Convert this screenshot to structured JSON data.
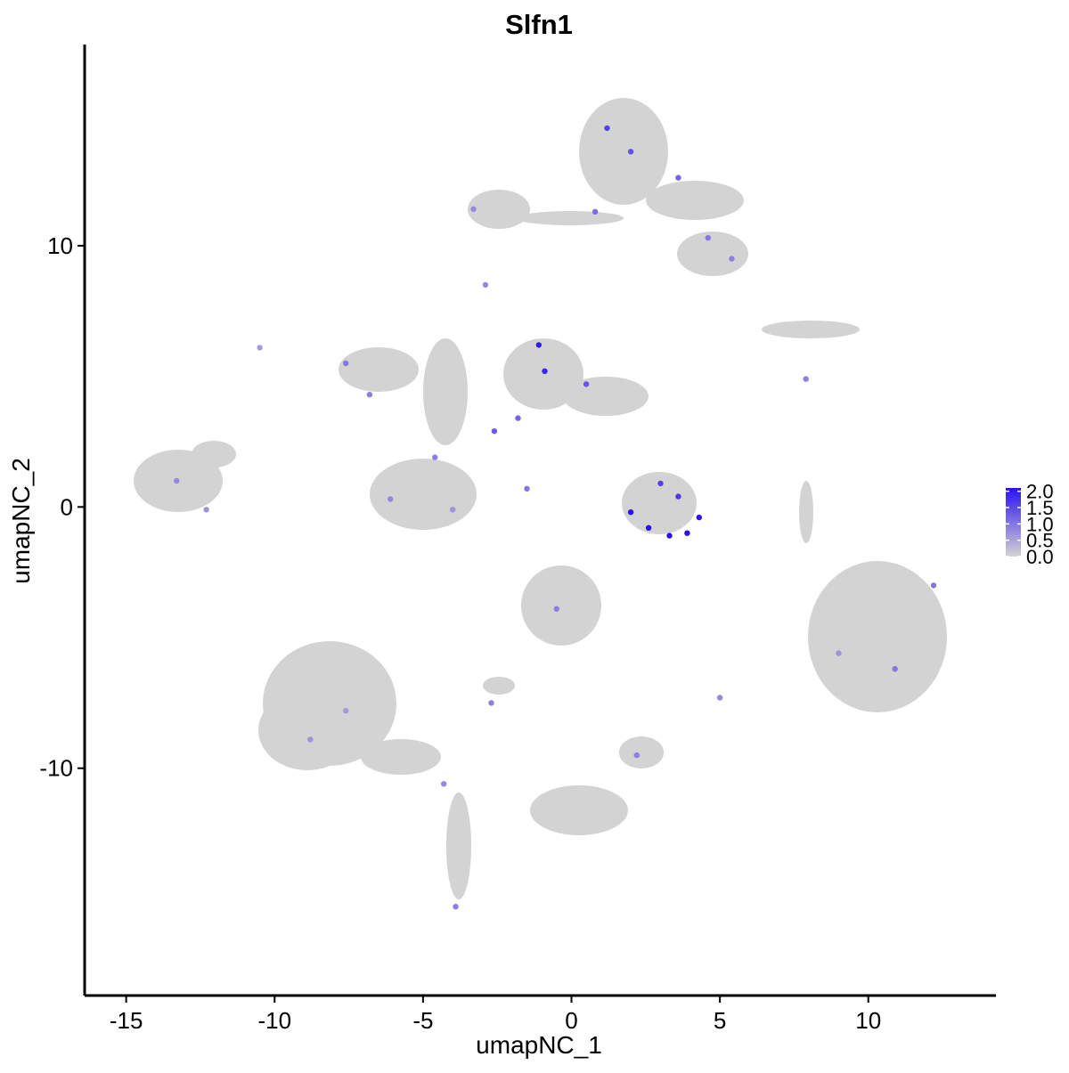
{
  "chart_data": {
    "type": "scatter",
    "title": "Slfn1",
    "xlabel": "umapNC_1",
    "ylabel": "umapNC_2",
    "xlim": [
      -16.4,
      14.3
    ],
    "ylim": [
      -18.7,
      17.7
    ],
    "x_ticks": [
      -15,
      -10,
      -5,
      0,
      5,
      10
    ],
    "x_tick_labels": [
      "-15",
      "-10",
      "-5",
      "0",
      "5",
      "10"
    ],
    "y_ticks": [
      -10,
      0,
      10
    ],
    "y_tick_labels": [
      "-10",
      "0",
      "10"
    ],
    "grid": false,
    "legend": {
      "placement": "right",
      "type": "colorbar",
      "min": 0.0,
      "max": 2.1,
      "ticks": [
        0.0,
        0.5,
        1.0,
        1.5,
        2.0
      ],
      "tick_labels": [
        "0.0",
        "0.5",
        "1.0",
        "1.5",
        "2.0"
      ]
    },
    "colors": {
      "low": "#d3d3d3",
      "high": "#2a12f0",
      "axis": "#000000"
    },
    "series": [
      {
        "name": "cells",
        "points": [
          {
            "x": 1.2,
            "y": 14.5,
            "v": 1.6
          },
          {
            "x": 2.0,
            "y": 13.6,
            "v": 1.4
          },
          {
            "x": 3.6,
            "y": 12.6,
            "v": 1.2
          },
          {
            "x": 0.8,
            "y": 11.3,
            "v": 1.1
          },
          {
            "x": -3.3,
            "y": 11.4,
            "v": 0.8
          },
          {
            "x": 4.6,
            "y": 10.3,
            "v": 1.0
          },
          {
            "x": 5.4,
            "y": 9.5,
            "v": 0.9
          },
          {
            "x": -2.9,
            "y": 8.5,
            "v": 0.8
          },
          {
            "x": -10.5,
            "y": 6.1,
            "v": 0.6
          },
          {
            "x": -1.1,
            "y": 6.2,
            "v": 2.0
          },
          {
            "x": -0.9,
            "y": 5.2,
            "v": 1.9
          },
          {
            "x": 0.5,
            "y": 4.7,
            "v": 1.4
          },
          {
            "x": -7.6,
            "y": 5.5,
            "v": 1.0
          },
          {
            "x": -6.8,
            "y": 4.3,
            "v": 0.9
          },
          {
            "x": -2.6,
            "y": 2.9,
            "v": 1.3
          },
          {
            "x": -1.8,
            "y": 3.4,
            "v": 1.2
          },
          {
            "x": -4.6,
            "y": 1.9,
            "v": 0.9
          },
          {
            "x": -6.1,
            "y": 0.3,
            "v": 0.8
          },
          {
            "x": -4.0,
            "y": -0.1,
            "v": 0.7
          },
          {
            "x": -1.5,
            "y": 0.7,
            "v": 1.0
          },
          {
            "x": -13.3,
            "y": 1.0,
            "v": 0.8
          },
          {
            "x": -12.3,
            "y": -0.1,
            "v": 0.7
          },
          {
            "x": 7.9,
            "y": 4.9,
            "v": 0.9
          },
          {
            "x": 2.0,
            "y": -0.2,
            "v": 2.1
          },
          {
            "x": 2.6,
            "y": -0.8,
            "v": 2.1
          },
          {
            "x": 3.3,
            "y": -1.1,
            "v": 2.1
          },
          {
            "x": 3.9,
            "y": -1.0,
            "v": 2.1
          },
          {
            "x": 4.3,
            "y": -0.4,
            "v": 2.1
          },
          {
            "x": 3.0,
            "y": 0.9,
            "v": 1.6
          },
          {
            "x": 3.6,
            "y": 0.4,
            "v": 1.7
          },
          {
            "x": -0.5,
            "y": -3.9,
            "v": 0.9
          },
          {
            "x": -2.7,
            "y": -7.5,
            "v": 0.9
          },
          {
            "x": 5.0,
            "y": -7.3,
            "v": 0.8
          },
          {
            "x": 2.2,
            "y": -9.5,
            "v": 0.9
          },
          {
            "x": -3.9,
            "y": -15.3,
            "v": 0.9
          },
          {
            "x": -4.3,
            "y": -10.6,
            "v": 0.8
          },
          {
            "x": 10.9,
            "y": -6.2,
            "v": 1.0
          },
          {
            "x": 12.2,
            "y": -3.0,
            "v": 1.0
          },
          {
            "x": 9.0,
            "y": -5.6,
            "v": 0.7
          },
          {
            "x": -8.8,
            "y": -8.9,
            "v": 0.7
          },
          {
            "x": -7.6,
            "y": -7.8,
            "v": 0.6
          }
        ]
      }
    ]
  }
}
